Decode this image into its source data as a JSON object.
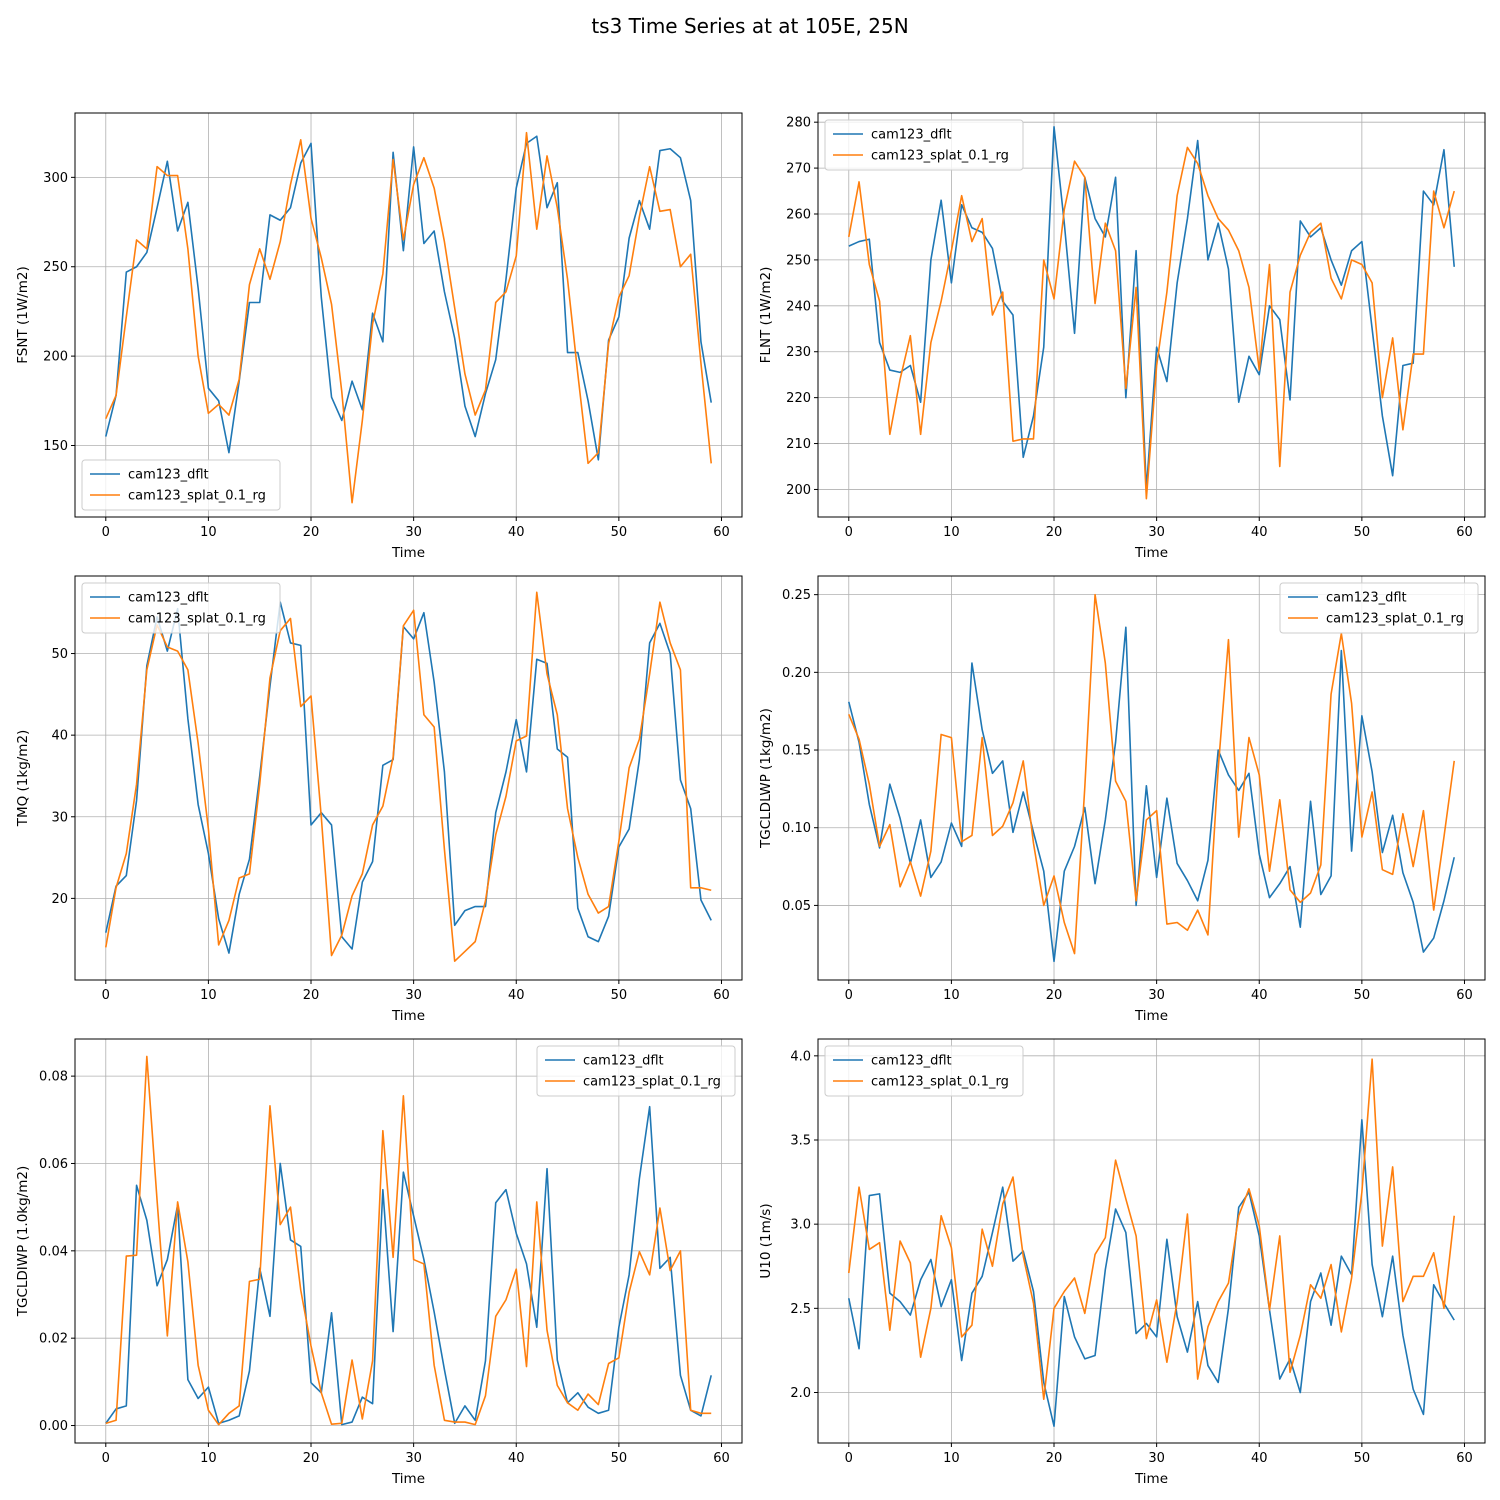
{
  "figure": {
    "title": "ts3 Time Series at at 105E, 25N"
  },
  "chart_data": [
    {
      "type": "line",
      "title": "",
      "xlabel": "Time",
      "ylabel": "FSNT (1W/m2)",
      "xlim": [
        -3,
        62
      ],
      "ylim": [
        110,
        336
      ],
      "xticks": [
        0,
        10,
        20,
        30,
        40,
        50,
        60
      ],
      "yticks": [
        150,
        200,
        250,
        300
      ],
      "grid": true,
      "legend": "lower left",
      "series": [
        {
          "name": "cam123_dflt",
          "color": "#1f77b4",
          "values": [
            155,
            178,
            247,
            250,
            258,
            283,
            309,
            270,
            286,
            238,
            182,
            175,
            146,
            186,
            230,
            230,
            279,
            276,
            283,
            308,
            319,
            233,
            177,
            164,
            186,
            170,
            224,
            208,
            314,
            259,
            317,
            263,
            270,
            236,
            210,
            172,
            155,
            179,
            198,
            243,
            294,
            319,
            323,
            283,
            297,
            202,
            202,
            175,
            142,
            209,
            222,
            266,
            287,
            271,
            315,
            316,
            311,
            287,
            208,
            174
          ]
        },
        {
          "name": "cam123_splat_0.1_rg",
          "color": "#ff7f0e",
          "values": [
            165,
            178,
            222,
            265,
            260,
            306,
            301,
            301,
            260,
            200,
            168,
            173,
            167,
            187,
            240,
            260,
            243,
            264,
            296,
            321,
            277,
            255,
            229,
            180,
            118,
            164,
            218,
            246,
            310,
            265,
            296,
            311,
            294,
            264,
            227,
            190,
            167,
            181,
            230,
            236,
            256,
            325,
            271,
            312,
            283,
            243,
            190,
            140,
            146,
            207,
            233,
            245,
            278,
            306,
            281,
            282,
            250,
            257,
            196,
            140
          ]
        }
      ]
    },
    {
      "type": "line",
      "title": "",
      "xlabel": "Time",
      "ylabel": "FLNT (1W/m2)",
      "xlim": [
        -3,
        62
      ],
      "ylim": [
        194,
        282
      ],
      "xticks": [
        0,
        10,
        20,
        30,
        40,
        50,
        60
      ],
      "yticks": [
        200,
        210,
        220,
        230,
        240,
        250,
        260,
        270,
        280
      ],
      "grid": true,
      "legend": "upper left",
      "series": [
        {
          "name": "cam123_dflt",
          "color": "#1f77b4",
          "values": [
            253,
            254,
            254.5,
            232,
            226,
            225.5,
            227,
            219,
            250,
            263,
            245,
            262,
            257,
            256,
            252.5,
            241,
            238,
            207,
            216,
            231,
            279,
            258,
            234,
            268,
            259,
            255,
            268,
            220,
            252,
            200,
            231,
            223.5,
            245,
            259,
            276,
            250,
            258,
            248,
            219,
            229,
            225,
            240,
            237,
            219.5,
            258.5,
            255,
            257,
            250,
            244.5,
            252,
            254,
            235,
            216,
            203,
            227,
            227.5,
            265,
            262,
            274,
            248.5
          ]
        },
        {
          "name": "cam123_splat_0.1_rg",
          "color": "#ff7f0e",
          "values": [
            255,
            267,
            249,
            241,
            212,
            224,
            233.5,
            212,
            232,
            241,
            252,
            264,
            254,
            259,
            238,
            243,
            210.5,
            211,
            211,
            250,
            241.5,
            261,
            271.5,
            268,
            240.5,
            258,
            252,
            222,
            244,
            198,
            227,
            243,
            264,
            274.5,
            271,
            264,
            259,
            256.5,
            252,
            244,
            226,
            249,
            205,
            243,
            251,
            256,
            258,
            246,
            241.5,
            250,
            249,
            245,
            220,
            233,
            213,
            229.5,
            229.5,
            265,
            257,
            265
          ]
        }
      ]
    },
    {
      "type": "line",
      "title": "",
      "xlabel": "Time",
      "ylabel": "TMQ (1kg/m2)",
      "xlim": [
        -3,
        62
      ],
      "ylim": [
        10,
        59.5
      ],
      "xticks": [
        0,
        10,
        20,
        30,
        40,
        50,
        60
      ],
      "yticks": [
        20,
        30,
        40,
        50
      ],
      "grid": true,
      "legend": "upper left",
      "series": [
        {
          "name": "cam123_dflt",
          "color": "#1f77b4",
          "values": [
            15.8,
            21.5,
            22.8,
            32,
            48.5,
            54.5,
            50.3,
            55.5,
            42,
            31.5,
            25.5,
            17.5,
            13.3,
            20.5,
            24.8,
            35,
            46,
            56.3,
            51.3,
            51,
            29,
            30.5,
            29,
            15.3,
            13.8,
            22,
            24.5,
            36.3,
            37,
            53.3,
            51.8,
            55,
            46.5,
            35.5,
            16.7,
            18.5,
            19,
            19,
            30.5,
            35.5,
            41.9,
            35.5,
            49.3,
            48.8,
            38.3,
            37.3,
            18.8,
            15.3,
            14.7,
            17.8,
            26.3,
            28.5,
            37,
            51.3,
            53.7,
            50,
            34.5,
            31,
            19.8,
            17.3
          ]
        },
        {
          "name": "cam123_splat_0.1_rg",
          "color": "#ff7f0e",
          "values": [
            14,
            21.3,
            25.5,
            34,
            48,
            53.5,
            50.8,
            50.3,
            48,
            39,
            28.5,
            14.3,
            17.3,
            22.5,
            23,
            34,
            47,
            52.8,
            54.3,
            43.5,
            44.8,
            30,
            13,
            15.5,
            20.3,
            23,
            29,
            31.3,
            37.3,
            53.4,
            55.3,
            42.5,
            41,
            26,
            12.3,
            13.5,
            14.7,
            19.7,
            27.8,
            32.5,
            39.3,
            39.9,
            57.5,
            47.5,
            42.5,
            31,
            25,
            20.5,
            18.2,
            19,
            27,
            36,
            39.5,
            47.5,
            56.3,
            51.3,
            48,
            21.3,
            21.3,
            21
          ]
        }
      ]
    },
    {
      "type": "line",
      "title": "",
      "xlabel": "Time",
      "ylabel": "TGCLDLWP (1kg/m2)",
      "xlim": [
        -3,
        62
      ],
      "ylim": [
        0.002,
        0.262
      ],
      "xticks": [
        0,
        10,
        20,
        30,
        40,
        50,
        60
      ],
      "yticks": [
        0.05,
        0.1,
        0.15,
        0.2,
        0.25
      ],
      "ytick_labels": [
        "0.05",
        "0.10",
        "0.15",
        "0.20",
        "0.25"
      ],
      "grid": true,
      "legend": "upper right",
      "series": [
        {
          "name": "cam123_dflt",
          "color": "#1f77b4",
          "values": [
            0.181,
            0.155,
            0.115,
            0.087,
            0.128,
            0.106,
            0.077,
            0.105,
            0.068,
            0.078,
            0.103,
            0.088,
            0.206,
            0.163,
            0.135,
            0.143,
            0.097,
            0.123,
            0.097,
            0.072,
            0.014,
            0.072,
            0.088,
            0.113,
            0.064,
            0.105,
            0.155,
            0.229,
            0.05,
            0.127,
            0.068,
            0.119,
            0.077,
            0.066,
            0.053,
            0.079,
            0.15,
            0.134,
            0.124,
            0.135,
            0.083,
            0.055,
            0.064,
            0.075,
            0.036,
            0.117,
            0.057,
            0.069,
            0.214,
            0.085,
            0.172,
            0.136,
            0.084,
            0.108,
            0.071,
            0.052,
            0.02,
            0.029,
            0.053,
            0.081
          ]
        },
        {
          "name": "cam123_splat_0.1_rg",
          "color": "#ff7f0e",
          "values": [
            0.173,
            0.157,
            0.128,
            0.088,
            0.102,
            0.062,
            0.078,
            0.056,
            0.085,
            0.16,
            0.158,
            0.091,
            0.095,
            0.158,
            0.095,
            0.101,
            0.116,
            0.143,
            0.09,
            0.05,
            0.069,
            0.039,
            0.019,
            0.126,
            0.25,
            0.206,
            0.13,
            0.117,
            0.053,
            0.105,
            0.111,
            0.038,
            0.039,
            0.034,
            0.047,
            0.031,
            0.138,
            0.221,
            0.094,
            0.158,
            0.134,
            0.072,
            0.118,
            0.06,
            0.052,
            0.058,
            0.076,
            0.186,
            0.225,
            0.18,
            0.094,
            0.123,
            0.073,
            0.07,
            0.109,
            0.075,
            0.111,
            0.047,
            0.094,
            0.143
          ]
        }
      ]
    },
    {
      "type": "line",
      "title": "",
      "xlabel": "Time",
      "ylabel": "TGCLDIWP (1.0kg/m2)",
      "xlim": [
        -3,
        62
      ],
      "ylim": [
        -0.004,
        0.0885
      ],
      "xticks": [
        0,
        10,
        20,
        30,
        40,
        50,
        60
      ],
      "yticks": [
        0.0,
        0.02,
        0.04,
        0.06,
        0.08
      ],
      "ytick_labels": [
        "0.00",
        "0.02",
        "0.04",
        "0.06",
        "0.08"
      ],
      "grid": true,
      "legend": "upper right",
      "series": [
        {
          "name": "cam123_dflt",
          "color": "#1f77b4",
          "values": [
            0.0005,
            0.0038,
            0.0045,
            0.055,
            0.047,
            0.032,
            0.038,
            0.0505,
            0.0105,
            0.0062,
            0.0088,
            0.0005,
            0.0012,
            0.0022,
            0.0125,
            0.036,
            0.025,
            0.06,
            0.0425,
            0.041,
            0.0098,
            0.0075,
            0.0258,
            0.0002,
            0.0008,
            0.0065,
            0.005,
            0.054,
            0.0215,
            0.058,
            0.048,
            0.038,
            0.026,
            0.0128,
            0.0005,
            0.0045,
            0.0012,
            0.0148,
            0.051,
            0.054,
            0.044,
            0.037,
            0.0225,
            0.0588,
            0.015,
            0.0052,
            0.0075,
            0.0042,
            0.0028,
            0.0035,
            0.0225,
            0.0345,
            0.0565,
            0.073,
            0.036,
            0.0385,
            0.0115,
            0.0035,
            0.0022,
            0.0115
          ]
        },
        {
          "name": "cam123_splat_0.1_rg",
          "color": "#ff7f0e",
          "values": [
            0.0005,
            0.0012,
            0.0388,
            0.039,
            0.0845,
            0.0515,
            0.0205,
            0.0512,
            0.0375,
            0.0138,
            0.0035,
            0.0002,
            0.0028,
            0.0045,
            0.033,
            0.0335,
            0.0732,
            0.046,
            0.05,
            0.031,
            0.0182,
            0.0075,
            0.0003,
            0.0005,
            0.015,
            0.0015,
            0.0148,
            0.0675,
            0.0385,
            0.0755,
            0.038,
            0.037,
            0.0138,
            0.0012,
            0.0008,
            0.0008,
            0.0002,
            0.0068,
            0.025,
            0.0288,
            0.0358,
            0.0135,
            0.0512,
            0.0218,
            0.0092,
            0.0052,
            0.0035,
            0.0072,
            0.0048,
            0.0142,
            0.0155,
            0.0305,
            0.0398,
            0.0345,
            0.0498,
            0.0355,
            0.04,
            0.0035,
            0.0028,
            0.0028
          ]
        }
      ]
    },
    {
      "type": "line",
      "title": "",
      "xlabel": "Time",
      "ylabel": "U10 (1m/s)",
      "xlim": [
        -3,
        62
      ],
      "ylim": [
        1.7,
        4.1
      ],
      "xticks": [
        0,
        10,
        20,
        30,
        40,
        50,
        60
      ],
      "yticks": [
        2.0,
        2.5,
        3.0,
        3.5,
        4.0
      ],
      "ytick_labels": [
        "2.0",
        "2.5",
        "3.0",
        "3.5",
        "4.0"
      ],
      "grid": true,
      "legend": "upper left",
      "series": [
        {
          "name": "cam123_dflt",
          "color": "#1f77b4",
          "values": [
            2.56,
            2.26,
            3.17,
            3.18,
            2.59,
            2.54,
            2.46,
            2.67,
            2.79,
            2.51,
            2.67,
            2.19,
            2.59,
            2.69,
            2.95,
            3.22,
            2.78,
            2.84,
            2.6,
            2.06,
            1.8,
            2.57,
            2.33,
            2.2,
            2.22,
            2.73,
            3.09,
            2.95,
            2.35,
            2.41,
            2.33,
            2.91,
            2.45,
            2.24,
            2.54,
            2.16,
            2.06,
            2.5,
            3.1,
            3.19,
            2.93,
            2.49,
            2.08,
            2.2,
            2.0,
            2.54,
            2.71,
            2.4,
            2.81,
            2.7,
            3.62,
            2.76,
            2.45,
            2.81,
            2.34,
            2.02,
            1.87,
            2.64,
            2.53,
            2.43
          ]
        },
        {
          "name": "cam123_splat_0.1_rg",
          "color": "#ff7f0e",
          "values": [
            2.71,
            3.22,
            2.85,
            2.89,
            2.37,
            2.9,
            2.77,
            2.21,
            2.5,
            3.05,
            2.86,
            2.33,
            2.4,
            2.97,
            2.75,
            3.12,
            3.28,
            2.81,
            2.53,
            1.96,
            2.5,
            2.6,
            2.68,
            2.47,
            2.82,
            2.92,
            3.38,
            3.15,
            2.93,
            2.32,
            2.55,
            2.18,
            2.54,
            3.06,
            2.08,
            2.39,
            2.54,
            2.65,
            3.05,
            3.21,
            2.99,
            2.49,
            2.93,
            2.12,
            2.34,
            2.64,
            2.56,
            2.76,
            2.36,
            2.68,
            3.19,
            3.98,
            2.87,
            3.34,
            2.54,
            2.69,
            2.69,
            2.83,
            2.5,
            3.05
          ]
        }
      ]
    }
  ]
}
